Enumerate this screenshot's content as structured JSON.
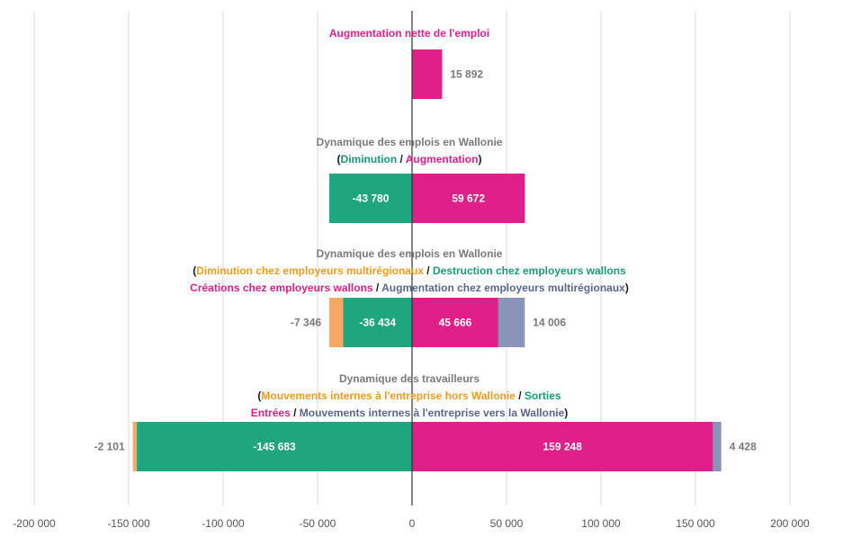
{
  "chart_data": {
    "type": "bar",
    "orientation": "horizontal",
    "stacked": true,
    "xlim": [
      -200000,
      200000
    ],
    "xticks": [
      -200000,
      -150000,
      -100000,
      -50000,
      0,
      50000,
      100000,
      150000,
      200000
    ],
    "xtick_labels": [
      "-200 000",
      "-150 000",
      "-100 000",
      "-50 000",
      "0",
      "50 000",
      "100 000",
      "150 000",
      "200 000"
    ],
    "grid": true,
    "colors": {
      "orange": "#f5a862",
      "green": "#20a67e",
      "pink": "#e01f8a",
      "slate": "#8a93b8",
      "gray": "#7a7a7a",
      "orange_text": "#f39a1e",
      "green_text": "#1a9a74",
      "slate_text": "#5a6590",
      "black": "#1a1a1a"
    },
    "groups": [
      {
        "title_lines": [
          [
            {
              "text": "Augmentation nette de l'emploi",
              "color": "pink"
            }
          ]
        ],
        "segments": [
          {
            "start": 0,
            "value": 15892,
            "color": "pink",
            "label": "15 892",
            "label_pos": "outside-right"
          }
        ]
      },
      {
        "title_lines": [
          [
            {
              "text": "Dynamique des emplois en Wallonie",
              "color": "gray"
            }
          ],
          [
            {
              "text": "(",
              "color": "black"
            },
            {
              "text": "Diminution",
              "color": "green_text"
            },
            {
              "text": " / ",
              "color": "black"
            },
            {
              "text": "Augmentation",
              "color": "pink"
            },
            {
              "text": ")",
              "color": "black"
            }
          ]
        ],
        "segments": [
          {
            "start": 0,
            "value": -43780,
            "color": "green",
            "label": "-43 780",
            "label_pos": "inside"
          },
          {
            "start": 0,
            "value": 59672,
            "color": "pink",
            "label": "59 672",
            "label_pos": "inside"
          }
        ]
      },
      {
        "title_lines": [
          [
            {
              "text": "Dynamique des emplois en Wallonie",
              "color": "gray"
            }
          ],
          [
            {
              "text": "(",
              "color": "black"
            },
            {
              "text": "Diminution chez employeurs multirégionaux",
              "color": "orange_text"
            },
            {
              "text": " / ",
              "color": "black"
            },
            {
              "text": "Destruction chez employeurs wallons",
              "color": "green_text"
            }
          ],
          [
            {
              "text": "Créations chez employeurs wallons",
              "color": "pink"
            },
            {
              "text": " / ",
              "color": "black"
            },
            {
              "text": "Augmentation chez employeurs multirégionaux",
              "color": "slate_text"
            },
            {
              "text": ")",
              "color": "black"
            }
          ]
        ],
        "segments": [
          {
            "start": 0,
            "value": -36434,
            "color": "green",
            "label": "-36 434",
            "label_pos": "inside"
          },
          {
            "start": -36434,
            "value": -7346,
            "color": "orange",
            "label": "-7 346",
            "label_pos": "outside-left"
          },
          {
            "start": 0,
            "value": 45666,
            "color": "pink",
            "label": "45 666",
            "label_pos": "inside"
          },
          {
            "start": 45666,
            "value": 14006,
            "color": "slate",
            "label": "14 006",
            "label_pos": "outside-right"
          }
        ]
      },
      {
        "title_lines": [
          [
            {
              "text": "Dynamique des travailleurs",
              "color": "gray"
            }
          ],
          [
            {
              "text": "(",
              "color": "black"
            },
            {
              "text": "Mouvements internes à l'entreprise hors Wallonie",
              "color": "orange_text"
            },
            {
              "text": " / ",
              "color": "black"
            },
            {
              "text": "Sorties",
              "color": "green_text"
            }
          ],
          [
            {
              "text": "Entrées",
              "color": "pink"
            },
            {
              "text": " / ",
              "color": "black"
            },
            {
              "text": "Mouvements internes à l'entreprise vers la Wallonie",
              "color": "slate_text"
            },
            {
              "text": ")",
              "color": "black"
            }
          ]
        ],
        "segments": [
          {
            "start": 0,
            "value": -145683,
            "color": "green",
            "label": "-145 683",
            "label_pos": "inside"
          },
          {
            "start": -145683,
            "value": -2101,
            "color": "orange",
            "label": "-2 101",
            "label_pos": "outside-left"
          },
          {
            "start": 0,
            "value": 159248,
            "color": "pink",
            "label": "159 248",
            "label_pos": "inside"
          },
          {
            "start": 159248,
            "value": 4428,
            "color": "slate",
            "label": "4 428",
            "label_pos": "outside-right"
          }
        ]
      }
    ]
  }
}
